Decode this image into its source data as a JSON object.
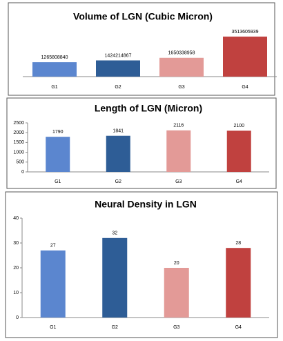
{
  "chart_data": [
    {
      "type": "bar",
      "title": "Volume of LGN (Cubic Micron)",
      "categories": [
        "G1",
        "G2",
        "G3",
        "G4"
      ],
      "values": [
        1265808840,
        1424214867,
        1650338958,
        3513605939
      ],
      "colors": [
        "#5b86cf",
        "#2e5d96",
        "#e39a97",
        "#c0413f"
      ],
      "ylim": [
        0,
        4000000000
      ]
    },
    {
      "type": "bar",
      "title": "Length of LGN (Micron)",
      "categories": [
        "G1",
        "G2",
        "G3",
        "G4"
      ],
      "values": [
        1790,
        1841,
        2116,
        2100
      ],
      "colors": [
        "#5b86cf",
        "#2e5d96",
        "#e39a97",
        "#c0413f"
      ],
      "ylim": [
        0,
        2500
      ],
      "yticks": [
        0,
        500,
        1000,
        1500,
        2000,
        2500
      ]
    },
    {
      "type": "bar",
      "title": "Neural Density in LGN",
      "categories": [
        "G1",
        "G2",
        "G3",
        "G4"
      ],
      "values": [
        27,
        32,
        20,
        28
      ],
      "colors": [
        "#5b86cf",
        "#2e5d96",
        "#e39a97",
        "#c0413f"
      ],
      "ylim": [
        0,
        40
      ],
      "yticks": [
        0,
        10,
        20,
        30,
        40
      ]
    }
  ]
}
